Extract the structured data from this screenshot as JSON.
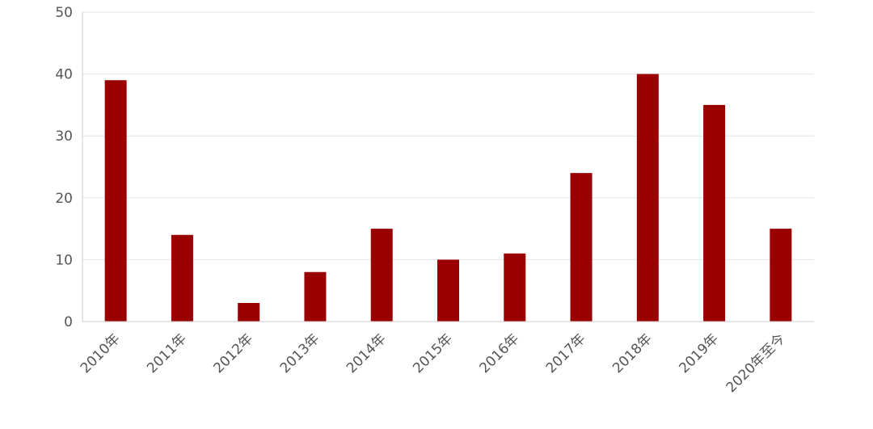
{
  "chart_data": {
    "type": "bar",
    "title": "",
    "xlabel": "",
    "ylabel": "",
    "categories": [
      "2010年",
      "2011年",
      "2012年",
      "2013年",
      "2014年",
      "2015年",
      "2016年",
      "2017年",
      "2018年",
      "2019年",
      "2020年至今"
    ],
    "series": [
      {
        "values": [
          39,
          14,
          3,
          8,
          15,
          10,
          11,
          24,
          40,
          35,
          15
        ],
        "color": "#9b0000"
      }
    ],
    "ylim": [
      0,
      50
    ],
    "yticks": [
      0,
      10,
      20,
      30,
      40,
      50
    ],
    "grid": true,
    "legend": "none"
  }
}
